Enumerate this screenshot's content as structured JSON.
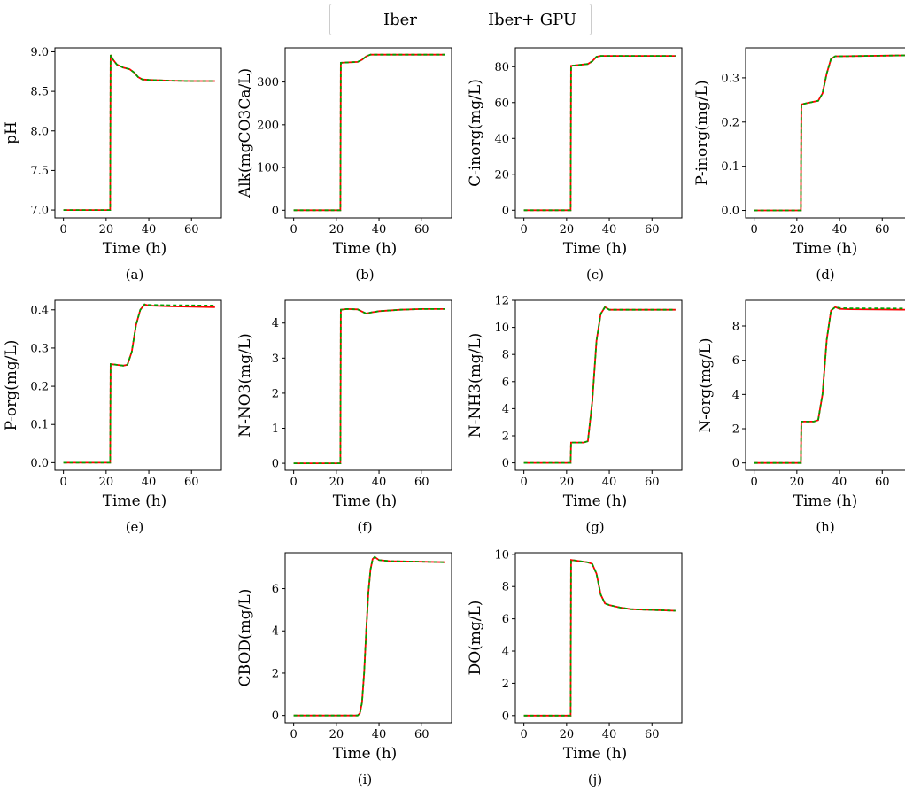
{
  "legend": {
    "entries": [
      {
        "label": "Iber",
        "color": "#ff0000",
        "style": "solid"
      },
      {
        "label": "Iber+ GPU",
        "color": "#00a000",
        "style": "dashed"
      }
    ],
    "placement": "top-center"
  },
  "chart_data": [
    {
      "type": "line",
      "panel": "(a)",
      "xlabel": "Time (h)",
      "ylabel": "pH",
      "xlim": [
        -4,
        74
      ],
      "ylim": [
        6.9,
        9.05
      ],
      "xticks": [
        0,
        20,
        40,
        60
      ],
      "yticks": [
        7.0,
        7.5,
        8.0,
        8.5,
        9.0
      ],
      "ytick_decimals": 1,
      "series": [
        {
          "name": "Iber",
          "x": [
            0,
            21.9,
            22.1,
            23,
            25,
            28,
            31,
            33,
            35,
            37,
            40,
            45,
            50,
            60,
            71
          ],
          "y": [
            7.0,
            7.0,
            8.96,
            8.91,
            8.84,
            8.8,
            8.78,
            8.74,
            8.68,
            8.65,
            8.645,
            8.64,
            8.635,
            8.63,
            8.63
          ]
        }
      ]
    },
    {
      "type": "line",
      "panel": "(b)",
      "xlabel": "Time (h)",
      "ylabel": "Alk(mgCO3Ca/L)",
      "xlim": [
        -4,
        74
      ],
      "ylim": [
        -18,
        380
      ],
      "xticks": [
        0,
        20,
        40,
        60
      ],
      "yticks": [
        0,
        100,
        200,
        300
      ],
      "ytick_decimals": 0,
      "series": [
        {
          "name": "Iber",
          "x": [
            0,
            21.9,
            22.1,
            30,
            32,
            34,
            36,
            40,
            71
          ],
          "y": [
            0,
            0,
            345,
            347,
            352,
            360,
            364,
            364,
            364
          ]
        }
      ]
    },
    {
      "type": "line",
      "panel": "(c)",
      "xlabel": "Time (h)",
      "ylabel": "C-inorg(mg/L)",
      "xlim": [
        -4,
        74
      ],
      "ylim": [
        -4.3,
        90.5
      ],
      "xticks": [
        0,
        20,
        40,
        60
      ],
      "yticks": [
        0,
        20,
        40,
        60,
        80
      ],
      "ytick_decimals": 0,
      "series": [
        {
          "name": "Iber",
          "x": [
            0,
            21.9,
            22.1,
            30,
            32,
            34,
            36,
            40,
            71
          ],
          "y": [
            0,
            0,
            80.5,
            81.5,
            83,
            85.5,
            86,
            86,
            86
          ]
        }
      ]
    },
    {
      "type": "line",
      "panel": "(d)",
      "xlabel": "Time (h)",
      "ylabel": "P-inorg(mg/L)",
      "xlim": [
        -4,
        74
      ],
      "ylim": [
        -0.017,
        0.368
      ],
      "xticks": [
        0,
        20,
        40,
        60
      ],
      "yticks": [
        0.0,
        0.1,
        0.2,
        0.3
      ],
      "ytick_decimals": 1,
      "series": [
        {
          "name": "Iber",
          "x": [
            0,
            21.9,
            22.1,
            25,
            30,
            32,
            34,
            36,
            38,
            40,
            71
          ],
          "y": [
            0,
            0,
            0.24,
            0.243,
            0.248,
            0.265,
            0.31,
            0.343,
            0.349,
            0.349,
            0.351
          ]
        }
      ]
    },
    {
      "type": "line",
      "panel": "(e)",
      "xlabel": "Time (h)",
      "ylabel": "P-org(mg/L)",
      "xlim": [
        -4,
        74
      ],
      "ylim": [
        -0.02,
        0.425
      ],
      "xticks": [
        0,
        20,
        40,
        60
      ],
      "yticks": [
        0.0,
        0.1,
        0.2,
        0.3,
        0.4
      ],
      "ytick_decimals": 1,
      "series": [
        {
          "name": "Iber",
          "x": [
            0,
            21.9,
            22.1,
            25,
            28,
            30,
            32,
            34,
            36,
            38,
            40,
            50,
            71
          ],
          "y": [
            0,
            0,
            0.258,
            0.256,
            0.254,
            0.256,
            0.29,
            0.36,
            0.4,
            0.414,
            0.411,
            0.409,
            0.407
          ]
        },
        {
          "name": "Iber+ GPU",
          "x": [
            0,
            21.9,
            22.1,
            25,
            28,
            30,
            32,
            34,
            36,
            38,
            40,
            50,
            71
          ],
          "y": [
            0,
            0,
            0.258,
            0.256,
            0.254,
            0.256,
            0.29,
            0.36,
            0.4,
            0.414,
            0.413,
            0.412,
            0.411
          ]
        }
      ]
    },
    {
      "type": "line",
      "panel": "(f)",
      "xlabel": "Time (h)",
      "ylabel": "N-NO3(mg/L)",
      "xlim": [
        -4,
        74
      ],
      "ylim": [
        -0.2,
        4.65
      ],
      "xticks": [
        0,
        20,
        40,
        60
      ],
      "yticks": [
        0,
        1,
        2,
        3,
        4
      ],
      "ytick_decimals": 0,
      "series": [
        {
          "name": "Iber",
          "x": [
            0,
            21.9,
            22.1,
            25,
            30,
            32,
            34,
            36,
            40,
            50,
            60,
            71
          ],
          "y": [
            0,
            0,
            4.38,
            4.4,
            4.39,
            4.33,
            4.27,
            4.3,
            4.34,
            4.38,
            4.4,
            4.4
          ]
        }
      ]
    },
    {
      "type": "line",
      "panel": "(g)",
      "xlabel": "Time (h)",
      "ylabel": "N-NH3(mg/L)",
      "xlim": [
        -4,
        74
      ],
      "ylim": [
        -0.55,
        12.0
      ],
      "xticks": [
        0,
        20,
        40,
        60
      ],
      "yticks": [
        0,
        2,
        4,
        6,
        8,
        10,
        12
      ],
      "ytick_decimals": 0,
      "series": [
        {
          "name": "Iber",
          "x": [
            0,
            21.9,
            22.1,
            28,
            30,
            32,
            34,
            36,
            38,
            40,
            45,
            71
          ],
          "y": [
            0,
            0,
            1.5,
            1.5,
            1.6,
            4.5,
            9.0,
            11.0,
            11.5,
            11.3,
            11.3,
            11.3
          ]
        }
      ]
    },
    {
      "type": "line",
      "panel": "(h)",
      "xlabel": "Time (h)",
      "ylabel": "N-org(mg/L)",
      "xlim": [
        -4,
        74
      ],
      "ylim": [
        -0.43,
        9.5
      ],
      "xticks": [
        0,
        20,
        40,
        60
      ],
      "yticks": [
        0,
        2,
        4,
        6,
        8
      ],
      "ytick_decimals": 0,
      "series": [
        {
          "name": "Iber",
          "x": [
            0,
            21.9,
            22.1,
            28,
            30,
            32,
            34,
            36,
            38,
            40,
            45,
            71
          ],
          "y": [
            0,
            0,
            2.42,
            2.42,
            2.5,
            4.0,
            7.2,
            8.9,
            9.1,
            9.0,
            8.98,
            8.95
          ]
        },
        {
          "name": "Iber+ GPU",
          "x": [
            0,
            21.9,
            22.1,
            28,
            30,
            32,
            34,
            36,
            38,
            40,
            45,
            71
          ],
          "y": [
            0,
            0,
            2.42,
            2.42,
            2.5,
            4.0,
            7.2,
            8.9,
            9.1,
            9.05,
            9.03,
            9.02
          ]
        }
      ]
    },
    {
      "type": "line",
      "panel": "(i)",
      "xlabel": "Time (h)",
      "ylabel": "CBOD(mg/L)",
      "xlim": [
        -4,
        74
      ],
      "ylim": [
        -0.35,
        7.7
      ],
      "xticks": [
        0,
        20,
        40,
        60
      ],
      "yticks": [
        0,
        2,
        4,
        6
      ],
      "ytick_decimals": 0,
      "series": [
        {
          "name": "Iber",
          "x": [
            0,
            30,
            31,
            32,
            33,
            34,
            35,
            36,
            37,
            38,
            40,
            45,
            71
          ],
          "y": [
            0,
            0,
            0.1,
            0.6,
            2.0,
            4.0,
            5.8,
            6.9,
            7.4,
            7.5,
            7.35,
            7.3,
            7.25
          ]
        }
      ]
    },
    {
      "type": "line",
      "panel": "(j)",
      "xlabel": "Time (h)",
      "ylabel": "DO(mg/L)",
      "xlim": [
        -4,
        74
      ],
      "ylim": [
        -0.45,
        10.1
      ],
      "xticks": [
        0,
        20,
        40,
        60
      ],
      "yticks": [
        0,
        2,
        4,
        6,
        8,
        10
      ],
      "ytick_decimals": 0,
      "series": [
        {
          "name": "Iber",
          "x": [
            0,
            21.9,
            22.1,
            25,
            30,
            32,
            34,
            36,
            38,
            40,
            45,
            50,
            60,
            71
          ],
          "y": [
            0,
            0,
            9.65,
            9.6,
            9.5,
            9.4,
            8.8,
            7.5,
            6.95,
            6.85,
            6.7,
            6.6,
            6.55,
            6.5
          ]
        }
      ]
    }
  ]
}
